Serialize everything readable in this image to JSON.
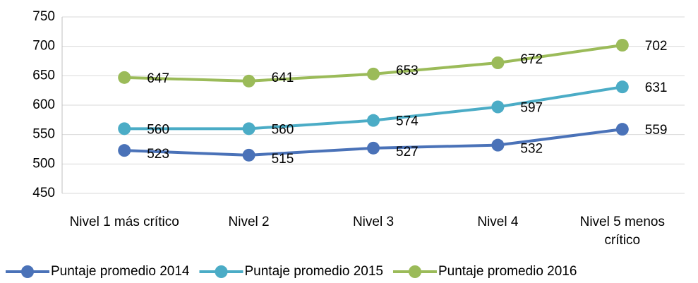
{
  "chart_data": {
    "type": "line",
    "categories": [
      "Nivel 1 más crítico",
      "Nivel 2",
      "Nivel 3",
      "Nivel 4",
      "Nivel 5 menos crítico"
    ],
    "series": [
      {
        "name": "Puntaje promedio 2014",
        "color": "#4a72b8",
        "values": [
          523,
          515,
          527,
          532,
          559
        ]
      },
      {
        "name": "Puntaje promedio 2015",
        "color": "#4bacc6",
        "values": [
          560,
          560,
          574,
          597,
          631
        ]
      },
      {
        "name": "Puntaje promedio 2016",
        "color": "#9bbb59",
        "values": [
          647,
          641,
          653,
          672,
          702
        ]
      }
    ],
    "ylim": [
      450,
      750
    ],
    "yticks": [
      450,
      500,
      550,
      600,
      650,
      700,
      750
    ],
    "grid": true,
    "legend": "bottom"
  }
}
